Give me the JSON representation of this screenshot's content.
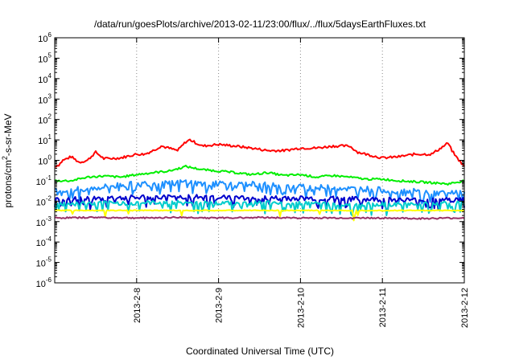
{
  "chart_data": {
    "type": "line",
    "title": "/data/run/goesPlots/archive/2013-02-11/23:00/flux/../flux/5daysEarthFluxes.txt",
    "xlabel": "Coordinated Universal Time (UTC)",
    "ylabel_parts": [
      "protons/cm",
      "2",
      "-s-sr-MeV"
    ],
    "y_scale": "log",
    "ylim_exp": [
      -6,
      6
    ],
    "y_ticks": [
      {
        "base": "10",
        "exp": "-6"
      },
      {
        "base": "10",
        "exp": "-5"
      },
      {
        "base": "10",
        "exp": "-4"
      },
      {
        "base": "10",
        "exp": "-3"
      },
      {
        "base": "10",
        "exp": "-2"
      },
      {
        "base": "10",
        "exp": "-1"
      },
      {
        "base": "10",
        "exp": "0"
      },
      {
        "base": "10",
        "exp": "1"
      },
      {
        "base": "10",
        "exp": "2"
      },
      {
        "base": "10",
        "exp": "3"
      },
      {
        "base": "10",
        "exp": "4"
      },
      {
        "base": "10",
        "exp": "5"
      },
      {
        "base": "10",
        "exp": "6"
      }
    ],
    "x_ticks": [
      "2013-2-8",
      "2013-2-9",
      "2013-2-10",
      "2013-2-11",
      "2013-2-12"
    ],
    "xlim": [
      "2013-02-07 00:00",
      "2013-02-12 00:00"
    ],
    "grid": true,
    "series": [
      {
        "color": "#ff0000",
        "points": [
          [
            0,
            0.5
          ],
          [
            0.05,
            0.6
          ],
          [
            0.1,
            1.0
          ],
          [
            0.2,
            1.5
          ],
          [
            0.3,
            0.8
          ],
          [
            0.4,
            1.0
          ],
          [
            0.5,
            2.5
          ],
          [
            0.6,
            1.2
          ],
          [
            0.8,
            1.3
          ],
          [
            1.0,
            2.0
          ],
          [
            1.1,
            2.0
          ],
          [
            1.2,
            3.0
          ],
          [
            1.3,
            5.0
          ],
          [
            1.5,
            3.0
          ],
          [
            1.6,
            8.0
          ],
          [
            1.65,
            10.0
          ],
          [
            1.8,
            5.0
          ],
          [
            2.0,
            6.0
          ],
          [
            2.2,
            5.0
          ],
          [
            2.4,
            4.0
          ],
          [
            2.6,
            3.0
          ],
          [
            2.8,
            3.0
          ],
          [
            3.0,
            4.0
          ],
          [
            3.2,
            4.0
          ],
          [
            3.4,
            5.0
          ],
          [
            3.6,
            5.0
          ],
          [
            3.7,
            2.5
          ],
          [
            3.8,
            2.0
          ],
          [
            4.0,
            1.3
          ],
          [
            4.2,
            1.5
          ],
          [
            4.4,
            2.0
          ],
          [
            4.6,
            2.0
          ],
          [
            4.75,
            5.0
          ],
          [
            4.8,
            7.0
          ],
          [
            4.85,
            3.0
          ],
          [
            4.9,
            1.5
          ],
          [
            5.0,
            0.5
          ]
        ]
      },
      {
        "color": "#00ee00",
        "points": [
          [
            0,
            0.1
          ],
          [
            0.2,
            0.1
          ],
          [
            0.4,
            0.15
          ],
          [
            0.6,
            0.17
          ],
          [
            0.8,
            0.15
          ],
          [
            1.0,
            0.2
          ],
          [
            1.2,
            0.25
          ],
          [
            1.4,
            0.3
          ],
          [
            1.6,
            0.5
          ],
          [
            1.8,
            0.35
          ],
          [
            2.0,
            0.3
          ],
          [
            2.2,
            0.25
          ],
          [
            2.4,
            0.2
          ],
          [
            2.6,
            0.25
          ],
          [
            2.8,
            0.18
          ],
          [
            3.0,
            0.2
          ],
          [
            3.2,
            0.15
          ],
          [
            3.4,
            0.18
          ],
          [
            3.6,
            0.15
          ],
          [
            3.8,
            0.12
          ],
          [
            4.0,
            0.12
          ],
          [
            4.2,
            0.1
          ],
          [
            4.4,
            0.09
          ],
          [
            4.6,
            0.08
          ],
          [
            4.8,
            0.07
          ],
          [
            5.0,
            0.1
          ]
        ]
      },
      {
        "color": "#1e90ff",
        "points": [
          [
            0,
            0.03
          ],
          [
            0.2,
            0.035
          ],
          [
            0.4,
            0.04
          ],
          [
            0.6,
            0.05
          ],
          [
            0.8,
            0.06
          ],
          [
            1.0,
            0.07
          ],
          [
            1.2,
            0.08
          ],
          [
            1.4,
            0.07
          ],
          [
            1.6,
            0.09
          ],
          [
            1.8,
            0.07
          ],
          [
            2.0,
            0.08
          ],
          [
            2.2,
            0.06
          ],
          [
            2.4,
            0.07
          ],
          [
            2.6,
            0.06
          ],
          [
            2.8,
            0.05
          ],
          [
            3.0,
            0.05
          ],
          [
            3.2,
            0.045
          ],
          [
            3.4,
            0.05
          ],
          [
            3.6,
            0.04
          ],
          [
            3.8,
            0.04
          ],
          [
            4.0,
            0.035
          ],
          [
            4.2,
            0.03
          ],
          [
            4.4,
            0.03
          ],
          [
            4.6,
            0.025
          ],
          [
            4.8,
            0.025
          ],
          [
            5.0,
            0.03
          ]
        ]
      },
      {
        "color": "#0000cc",
        "points": [
          [
            0,
            0.012
          ],
          [
            0.5,
            0.013
          ],
          [
            1.0,
            0.015
          ],
          [
            1.5,
            0.016
          ],
          [
            2.0,
            0.016
          ],
          [
            2.5,
            0.014
          ],
          [
            3.0,
            0.014
          ],
          [
            3.5,
            0.013
          ],
          [
            4.0,
            0.012
          ],
          [
            4.5,
            0.011
          ],
          [
            5.0,
            0.012
          ]
        ]
      },
      {
        "color": "#00cccc",
        "points": [
          [
            0,
            0.007
          ],
          [
            0.5,
            0.008
          ],
          [
            1.0,
            0.008
          ],
          [
            1.5,
            0.009
          ],
          [
            2.0,
            0.008
          ],
          [
            2.5,
            0.008
          ],
          [
            3.0,
            0.008
          ],
          [
            3.5,
            0.007
          ],
          [
            4.0,
            0.007
          ],
          [
            4.5,
            0.007
          ],
          [
            5.0,
            0.008
          ]
        ]
      },
      {
        "color": "#ffff00",
        "points": [
          [
            0,
            0.0035
          ],
          [
            1.0,
            0.0035
          ],
          [
            2.0,
            0.0035
          ],
          [
            3.0,
            0.0035
          ],
          [
            4.0,
            0.0035
          ],
          [
            5.0,
            0.0035
          ]
        ]
      },
      {
        "color": "#993366",
        "points": [
          [
            0,
            0.0015
          ],
          [
            0.5,
            0.0016
          ],
          [
            1.0,
            0.0015
          ],
          [
            1.5,
            0.0016
          ],
          [
            2.0,
            0.0015
          ],
          [
            2.5,
            0.0016
          ],
          [
            3.0,
            0.0015
          ],
          [
            3.5,
            0.0015
          ],
          [
            4.0,
            0.0015
          ],
          [
            4.5,
            0.0014
          ],
          [
            5.0,
            0.0015
          ]
        ]
      }
    ]
  }
}
